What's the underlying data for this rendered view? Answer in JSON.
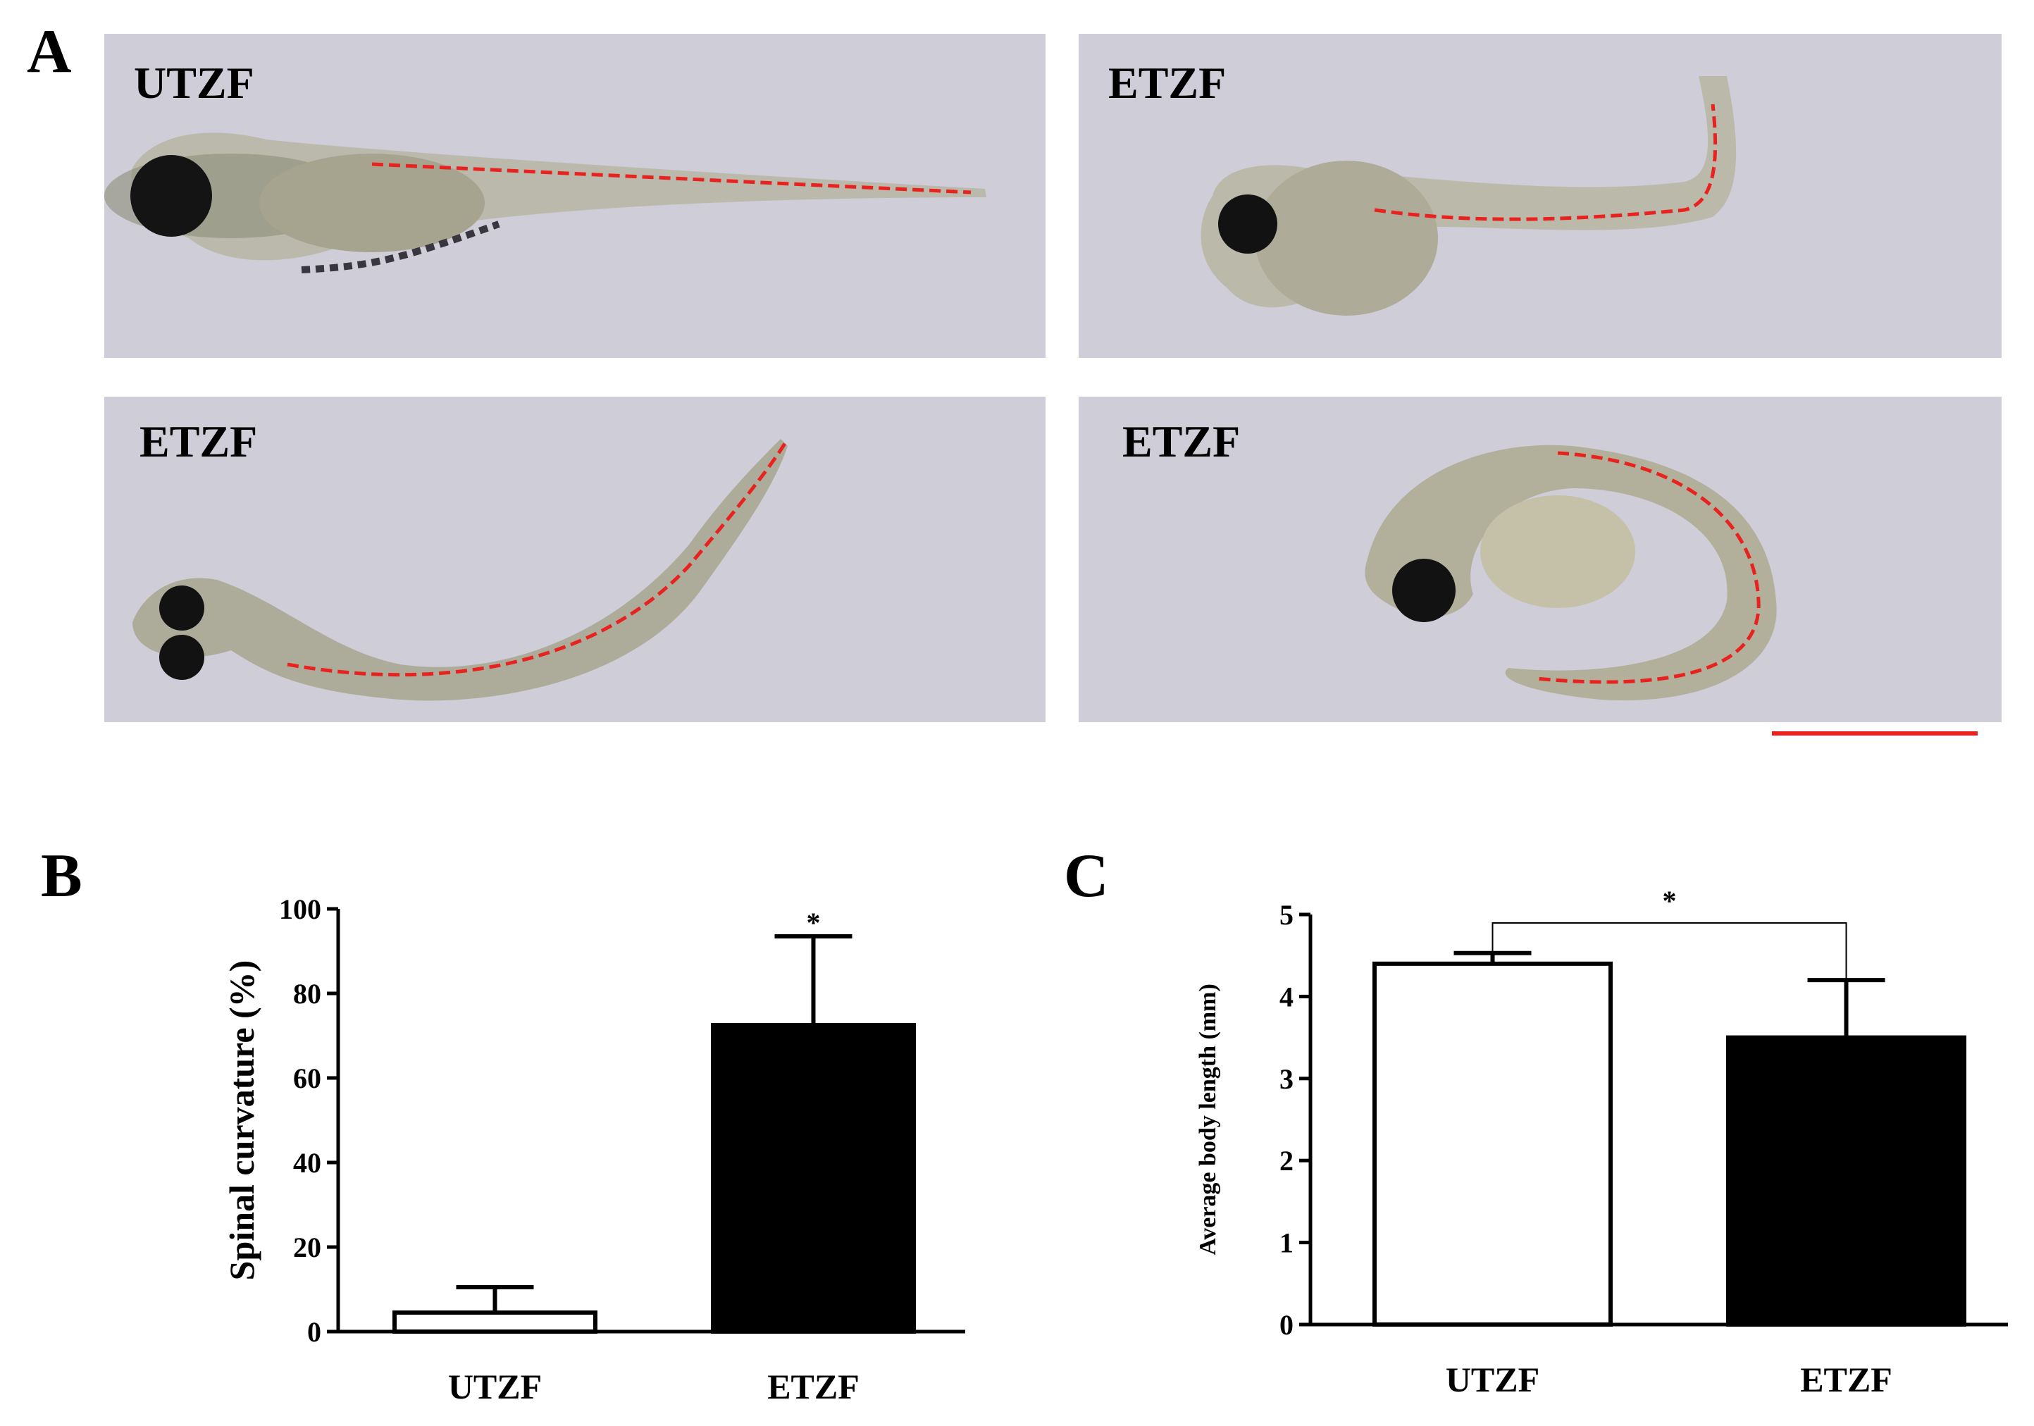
{
  "panels": {
    "a": {
      "letter": "A",
      "images": [
        {
          "label": "UTZF",
          "description": "straight larva"
        },
        {
          "label": "ETZF",
          "description": "bent tail larva"
        },
        {
          "label": "ETZF",
          "description": "curved larva"
        },
        {
          "label": "ETZF",
          "description": "coiled larva"
        }
      ],
      "colors": {
        "background": "#cfcdd8",
        "spine_trace": "#e8231f"
      }
    },
    "b": {
      "letter": "B"
    },
    "c": {
      "letter": "C"
    }
  },
  "chart_data": [
    {
      "id": "B",
      "type": "bar",
      "categories": [
        "UTZF",
        "ETZF"
      ],
      "values": [
        4.5,
        72.5
      ],
      "errors": [
        6,
        21
      ],
      "fills": [
        "#ffffff",
        "#000000"
      ],
      "ylabel": "Spinal curvature (%)",
      "xlabel": "",
      "ylim": [
        0,
        100
      ],
      "yticks": [
        "0",
        "20",
        "40",
        "60",
        "80",
        "100"
      ],
      "annotation": "*",
      "grid": false
    },
    {
      "id": "C",
      "type": "bar",
      "categories": [
        "UTZF",
        "ETZF"
      ],
      "values": [
        4.4,
        3.5
      ],
      "errors": [
        0.13,
        0.7
      ],
      "fills": [
        "#ffffff",
        "#000000"
      ],
      "ylabel": "Average body length (mm)",
      "xlabel": "",
      "ylim": [
        0,
        5
      ],
      "yticks": [
        "0",
        "1",
        "2",
        "3",
        "4",
        "5"
      ],
      "annotation": "*",
      "grid": false
    }
  ]
}
